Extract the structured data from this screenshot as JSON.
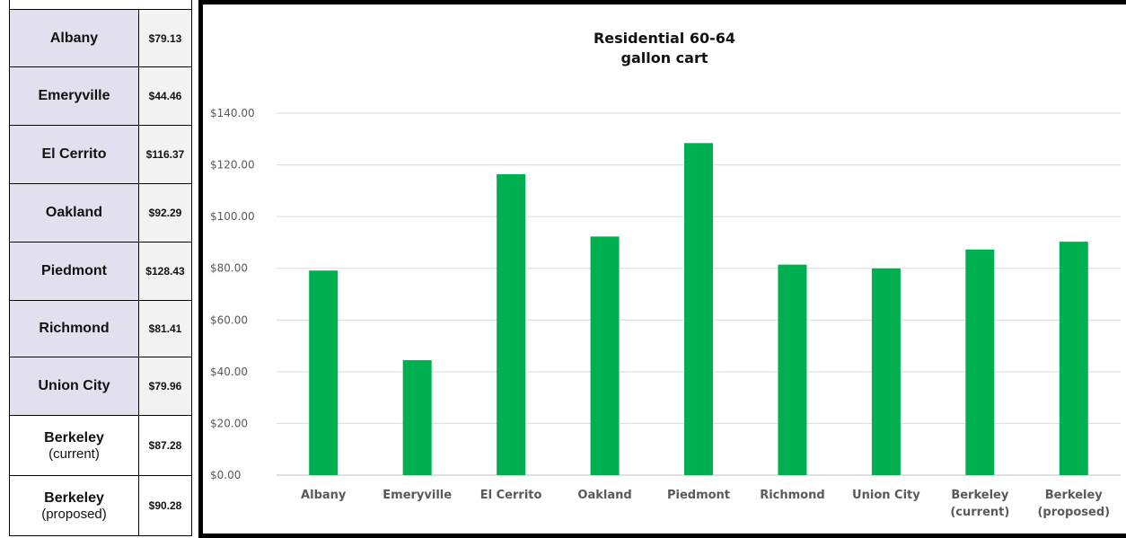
{
  "table": {
    "rows": [
      {
        "city": "Albany",
        "sub": "",
        "value": "$79.13"
      },
      {
        "city": "Emeryville",
        "sub": "",
        "value": "$44.46"
      },
      {
        "city": "El Cerrito",
        "sub": "",
        "value": "$116.37"
      },
      {
        "city": "Oakland",
        "sub": "",
        "value": "$92.29"
      },
      {
        "city": "Piedmont",
        "sub": "",
        "value": "$128.43"
      },
      {
        "city": "Richmond",
        "sub": "",
        "value": "$81.41"
      },
      {
        "city": "Union City",
        "sub": "",
        "value": "$79.96"
      },
      {
        "city": "Berkeley",
        "sub": "(current)",
        "value": "$87.28"
      },
      {
        "city": "Berkeley",
        "sub": "(proposed)",
        "value": "$90.28"
      }
    ]
  },
  "colors": {
    "bar": "#00b050",
    "table_shade": "#e2dfee"
  },
  "chart_data": {
    "type": "bar",
    "title_line1": "Residential 60-64",
    "title_line2": "gallon cart",
    "xlabel": "",
    "ylabel": "",
    "categories": [
      [
        "Albany"
      ],
      [
        "Emeryville"
      ],
      [
        "El Cerrito"
      ],
      [
        "Oakland"
      ],
      [
        "Piedmont"
      ],
      [
        "Richmond"
      ],
      [
        "Union City"
      ],
      [
        "Berkeley",
        "(current)"
      ],
      [
        "Berkeley",
        "(proposed)"
      ]
    ],
    "values": [
      79.13,
      44.46,
      116.37,
      92.29,
      128.43,
      81.41,
      79.96,
      87.28,
      90.28
    ],
    "ylim": [
      0,
      140
    ],
    "yticks": [
      0,
      20,
      40,
      60,
      80,
      100,
      120,
      140
    ],
    "ytick_labels": [
      "$0.00",
      "$20.00",
      "$40.00",
      "$60.00",
      "$80.00",
      "$100.00",
      "$120.00",
      "$140.00"
    ],
    "grid": true,
    "legend": "none"
  }
}
